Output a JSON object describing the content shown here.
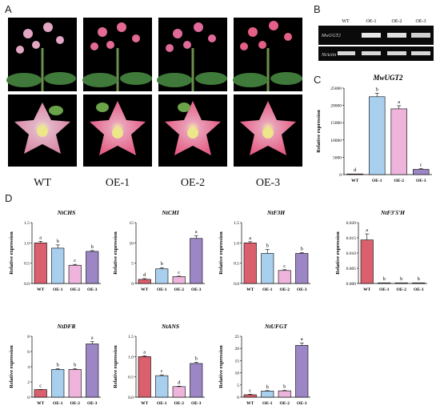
{
  "panel_letters": {
    "a": "A",
    "b": "B",
    "c": "C",
    "d": "D"
  },
  "groups": [
    "WT",
    "OE-1",
    "OE-2",
    "OE-3"
  ],
  "photo_labels": [
    "WT",
    "OE-1",
    "OE-2",
    "OE-3"
  ],
  "gel": {
    "lane_labels": [
      "WT",
      "OE-1",
      "OE-2",
      "OE-3"
    ],
    "row_labels": [
      "MwUGT2",
      "NtActin"
    ]
  },
  "colors": {
    "WT": "#d9606c",
    "OE-1": "#a9cfee",
    "OE-2": "#eeb4dc",
    "OE-3": "#9c86c6",
    "petal": "#e55f86",
    "leaf": "#3f7a3a",
    "photo_bg": "#000000"
  },
  "chart_data": [
    {
      "id": "MwUGT2",
      "panel": "C",
      "type": "bar",
      "title": "MwUGT2",
      "ylabel": "Relative expression",
      "categories": [
        "WT",
        "OE-1",
        "OE-2",
        "OE-3"
      ],
      "values": [
        0,
        22500,
        19000,
        1500
      ],
      "errors": [
        0,
        1000,
        900,
        200
      ],
      "letters": [
        "d",
        "b",
        "a",
        "c"
      ],
      "ylim": [
        0,
        25000
      ],
      "yticks": [
        "0",
        "5000",
        "10000",
        "15000",
        "20000",
        "25000"
      ]
    },
    {
      "id": "NtCHS",
      "panel": "D",
      "type": "bar",
      "title": "NtCHS",
      "ylabel": "Relative expression",
      "categories": [
        "WT",
        "OE-1",
        "OE-2",
        "OE-3"
      ],
      "values": [
        1.0,
        0.87,
        0.45,
        0.79
      ],
      "errors": [
        0.04,
        0.08,
        0.02,
        0.02
      ],
      "letters": [
        "a",
        "b",
        "c",
        "b"
      ],
      "ylim": [
        0,
        1.5
      ],
      "yticks": [
        "0.0",
        "0.5",
        "1.0",
        "1.5"
      ]
    },
    {
      "id": "NtCHI",
      "panel": "D",
      "type": "bar",
      "title": "NtCHI",
      "ylabel": "Relative expression",
      "categories": [
        "WT",
        "OE-1",
        "OE-2",
        "OE-3"
      ],
      "values": [
        1.0,
        3.6,
        1.7,
        11.1
      ],
      "errors": [
        0.2,
        0.3,
        0.1,
        0.7
      ],
      "letters": [
        "d",
        "b",
        "c",
        "a"
      ],
      "ylim": [
        0,
        15
      ],
      "yticks": [
        "0",
        "5",
        "10",
        "15"
      ]
    },
    {
      "id": "NtF3H",
      "panel": "D",
      "type": "bar",
      "title": "NtF3H",
      "ylabel": "Relative expression",
      "categories": [
        "WT",
        "OE-1",
        "OE-2",
        "OE-3"
      ],
      "values": [
        1.0,
        0.74,
        0.32,
        0.74
      ],
      "errors": [
        0.03,
        0.1,
        0.02,
        0.02
      ],
      "letters": [
        "a",
        "b",
        "c",
        "b"
      ],
      "ylim": [
        0,
        1.5
      ],
      "yticks": [
        "0.0",
        "0.5",
        "1.0",
        "1.5"
      ]
    },
    {
      "id": "NtF3'5'H",
      "panel": "D",
      "type": "bar",
      "title": "NtF3'5'H",
      "ylabel": "Relative expression",
      "categories": [
        "WT",
        "OE-1",
        "OE-2",
        "OE-3"
      ],
      "values": [
        0.0143,
        0.0001,
        0.0001,
        0.0001
      ],
      "errors": [
        0.002,
        0,
        0,
        0
      ],
      "letters": [
        "a",
        "b",
        "b",
        "b"
      ],
      "ylim": [
        0,
        0.02
      ],
      "yticks": [
        "0.000",
        "0.005",
        "0.010",
        "0.015",
        "0.020"
      ]
    },
    {
      "id": "NtDFR",
      "panel": "D",
      "type": "bar",
      "title": "NtDFR",
      "ylabel": "Relative expression",
      "categories": [
        "WT",
        "OE-1",
        "OE-2",
        "OE-3"
      ],
      "values": [
        1.0,
        3.65,
        3.65,
        7.0
      ],
      "errors": [
        0.02,
        0.1,
        0.1,
        0.3
      ],
      "letters": [
        "c",
        "b",
        "b",
        "a"
      ],
      "ylim": [
        0,
        8
      ],
      "yticks": [
        "0",
        "2",
        "4",
        "6",
        "8"
      ]
    },
    {
      "id": "NtANS",
      "panel": "D",
      "type": "bar",
      "title": "NtANS",
      "ylabel": "Relative expression",
      "categories": [
        "WT",
        "OE-1",
        "OE-2",
        "OE-3"
      ],
      "values": [
        1.0,
        0.53,
        0.26,
        0.83
      ],
      "errors": [
        0.02,
        0.02,
        0.01,
        0.03
      ],
      "letters": [
        "a",
        "c",
        "d",
        "b"
      ],
      "ylim": [
        0,
        1.5
      ],
      "yticks": [
        "0.0",
        "0.5",
        "1.0",
        "1.5"
      ]
    },
    {
      "id": "NtUFGT",
      "panel": "D",
      "type": "bar",
      "title": "NtUFGT",
      "ylabel": "Relative expression",
      "categories": [
        "WT",
        "OE-1",
        "OE-2",
        "OE-3"
      ],
      "values": [
        1.0,
        2.5,
        2.6,
        21.3
      ],
      "errors": [
        0.2,
        0.2,
        0.2,
        1.0
      ],
      "letters": [
        "c",
        "b",
        "b",
        "a"
      ],
      "ylim": [
        0,
        25
      ],
      "yticks": [
        "0",
        "5",
        "10",
        "15",
        "20",
        "25"
      ]
    }
  ]
}
